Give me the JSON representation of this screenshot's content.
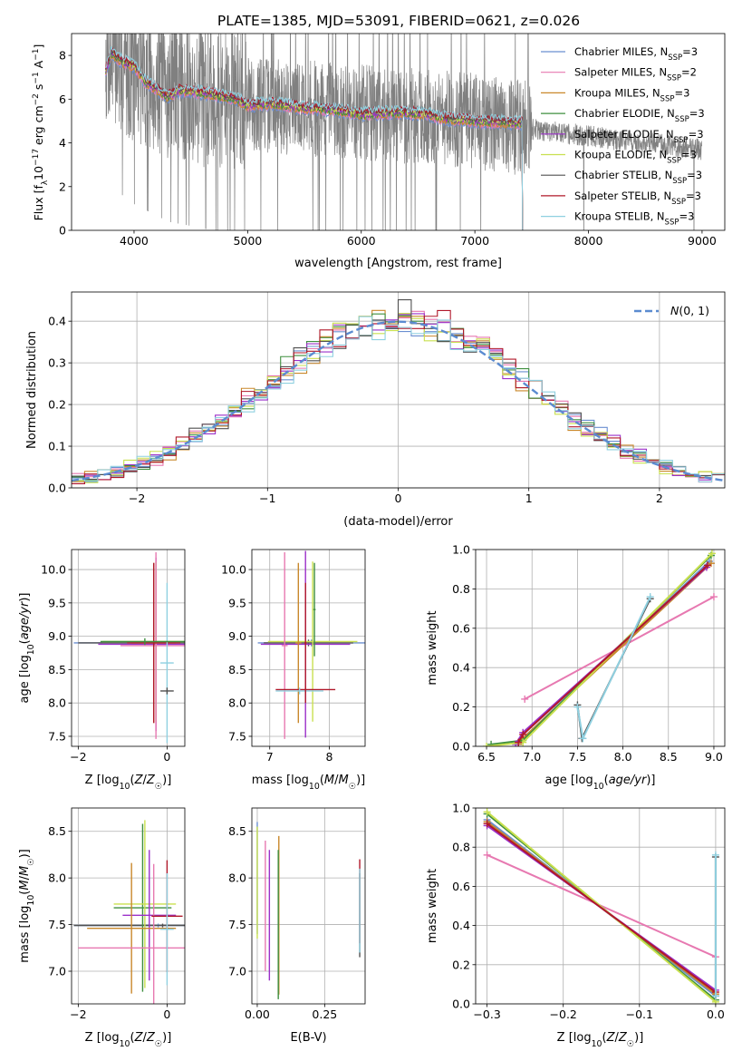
{
  "figure_title": "PLATE=1385, MJD=53091, FIBERID=0621, z=0.026",
  "series_names": [
    "Chabrier MILES, N_SSP=3",
    "Salpeter MILES, N_SSP=2",
    "Kroupa MILES, N_SSP=3",
    "Chabrier ELODIE, N_SSP=3",
    "Salpeter ELODIE, N_SSP=3",
    "Kroupa ELODIE, N_SSP=3",
    "Chabrier STELIB, N_SSP=3",
    "Salpeter STELIB, N_SSP=3",
    "Kroupa STELIB, N_SSP=3"
  ],
  "series_colors": [
    "#6b8fd1",
    "#e779b1",
    "#c9882b",
    "#3f8f3f",
    "#9b30c9",
    "#c9e04f",
    "#505050",
    "#b0182a",
    "#8fd0e0"
  ],
  "chart_data": [
    {
      "id": "spectrum",
      "type": "line",
      "title": "PLATE=1385, MJD=53091, FIBERID=0621, z=0.026",
      "xlabel": "wavelength [Angstrom, rest frame]",
      "ylabel": "Flux [f_λ 10^-17 erg cm^-2 s^-1 A^-1]",
      "xlim": [
        3450,
        9200
      ],
      "ylim": [
        0,
        9
      ],
      "xticks": [
        4000,
        5000,
        6000,
        7000,
        8000,
        9000
      ],
      "yticks": [
        0,
        2,
        4,
        6,
        8
      ],
      "data_color": "#808080",
      "data_x_range": [
        3750,
        9000
      ],
      "data_trend": {
        "x": [
          3750,
          3900,
          4000,
          4300,
          4600,
          5000,
          5500,
          6000,
          6500,
          7000,
          7400,
          8000,
          9000
        ],
        "y": [
          8.0,
          7.6,
          7.2,
          6.4,
          6.1,
          5.8,
          5.6,
          5.4,
          5.2,
          5.0,
          4.7,
          4.3,
          3.7
        ]
      },
      "model_trend": {
        "x": [
          3750,
          3800,
          3900,
          4000,
          4100,
          4300,
          4400,
          4600,
          4900,
          5000,
          5200,
          5500,
          5800,
          6000,
          6300,
          6600,
          6750,
          7000,
          7400
        ],
        "y": [
          7.3,
          8.1,
          7.7,
          7.5,
          6.8,
          6.1,
          6.4,
          6.3,
          6.0,
          5.7,
          5.8,
          5.6,
          5.5,
          5.3,
          5.4,
          5.3,
          5.1,
          5.0,
          4.9
        ]
      },
      "model_end_x": 7420,
      "legend_position": "upper right",
      "grid": false
    },
    {
      "id": "residuals",
      "type": "line",
      "xlabel": "(data-model)/error",
      "ylabel": "Normed distribution",
      "xlim": [
        -2.5,
        2.5
      ],
      "ylim": [
        0,
        0.47
      ],
      "xticks": [
        -2,
        -1,
        0,
        1,
        2
      ],
      "yticks": [
        0.0,
        0.1,
        0.2,
        0.3,
        0.4
      ],
      "grid": true,
      "bin_width": 0.1,
      "reference_curve": {
        "label": "N(0,1)",
        "type": "normal",
        "mean": 0,
        "sigma": 1,
        "style": "dashed",
        "color": "#5b8bd0"
      },
      "histogram_type": "step",
      "legend_position": "upper right"
    },
    {
      "id": "age_vs_Z",
      "type": "scatter",
      "xlabel": "Z [log10(Z/Z☉)]",
      "ylabel": "age [log10(age/yr)]",
      "xlim": [
        -2.15,
        0.4
      ],
      "ylim": [
        7.35,
        10.3
      ],
      "xticks": [
        -2,
        0
      ],
      "yticks": [
        7.5,
        8.0,
        8.5,
        9.0,
        9.5,
        10.0
      ],
      "grid": true,
      "error_bars": [
        {
          "s": 0,
          "x": -0.3,
          "y": 8.9,
          "xerr": 1.8,
          "yerr": 0.05
        },
        {
          "s": 6,
          "x": 0.0,
          "y": 8.9,
          "xerr": 2.0,
          "yerr": 0.02
        },
        {
          "s": 4,
          "x": -0.25,
          "y": 8.88,
          "xerr": 1.3,
          "yerr": 1.3
        },
        {
          "s": 5,
          "x": -0.25,
          "y": 8.92,
          "xerr": 1.2,
          "yerr": 1.2
        },
        {
          "s": 1,
          "x": -0.25,
          "y": 8.86,
          "xerr": 0.8,
          "yerr": 1.4
        },
        {
          "s": 2,
          "x": -0.3,
          "y": 8.9,
          "xerr": 0.5,
          "yerr": 1.2
        },
        {
          "s": 7,
          "x": -0.3,
          "y": 8.9,
          "xerr": 0.6,
          "yerr": 1.2
        },
        {
          "s": 8,
          "x": 0.0,
          "y": 8.6,
          "xerr": 0.15,
          "yerr": 1.2
        },
        {
          "s": 6,
          "x": 0.0,
          "y": 8.18,
          "xerr": 0.15,
          "yerr": 0.05
        },
        {
          "s": 3,
          "x": -0.5,
          "y": 8.92,
          "xerr": 1.0,
          "yerr": 0.05
        }
      ]
    },
    {
      "id": "age_vs_mass",
      "type": "scatter",
      "xlabel": "mass [log10(M/M☉)]",
      "ylabel": "",
      "xlim": [
        6.7,
        8.6
      ],
      "ylim": [
        7.35,
        10.3
      ],
      "xticks": [
        7,
        8
      ],
      "yticks": [
        7.5,
        8.0,
        8.5,
        9.0,
        9.5,
        10.0
      ],
      "grid": true,
      "error_bars": [
        {
          "s": 0,
          "x": 7.7,
          "y": 8.9,
          "xerr": 0.9,
          "yerr": 0.05
        },
        {
          "s": 6,
          "x": 7.65,
          "y": 8.9,
          "xerr": 0.75,
          "yerr": 0.05
        },
        {
          "s": 4,
          "x": 7.6,
          "y": 8.88,
          "xerr": 0.75,
          "yerr": 1.4
        },
        {
          "s": 5,
          "x": 7.72,
          "y": 8.92,
          "xerr": 0.75,
          "yerr": 1.2
        },
        {
          "s": 1,
          "x": 7.25,
          "y": 8.86,
          "xerr": 0.05,
          "yerr": 1.4
        },
        {
          "s": 2,
          "x": 7.48,
          "y": 8.9,
          "xerr": 0.05,
          "yerr": 1.2
        },
        {
          "s": 7,
          "x": 7.6,
          "y": 8.2,
          "xerr": 0.5,
          "yerr": 0.05
        },
        {
          "s": 8,
          "x": 7.5,
          "y": 8.18,
          "xerr": 0.4,
          "yerr": 0.05
        },
        {
          "s": 3,
          "x": 7.75,
          "y": 9.4,
          "xerr": 0.02,
          "yerr": 0.7
        },
        {
          "s": 7,
          "x": 7.6,
          "y": 8.9,
          "xerr": 0.02,
          "yerr": 0.9
        }
      ]
    },
    {
      "id": "massweight_vs_age",
      "type": "line",
      "xlabel": "age [log10(age/yr)]",
      "ylabel": "mass weight",
      "xlim": [
        6.38,
        9.12
      ],
      "ylim": [
        0,
        1.0
      ],
      "xticks": [
        6.5,
        7.0,
        7.5,
        8.0,
        8.5,
        9.0
      ],
      "yticks": [
        0.0,
        0.2,
        0.4,
        0.6,
        0.8,
        1.0
      ],
      "grid": true,
      "lines": [
        {
          "s": 0,
          "x": [
            6.85,
            6.9,
            8.95
          ],
          "y": [
            0.01,
            0.04,
            0.94
          ]
        },
        {
          "s": 1,
          "x": [
            6.92,
            9.0
          ],
          "y": [
            0.24,
            0.76
          ]
        },
        {
          "s": 2,
          "x": [
            6.85,
            6.9,
            8.97
          ],
          "y": [
            0.01,
            0.04,
            0.93
          ]
        },
        {
          "s": 3,
          "x": [
            6.55,
            6.9,
            8.97
          ],
          "y": [
            0.01,
            0.03,
            0.97
          ]
        },
        {
          "s": 4,
          "x": [
            6.82,
            6.9,
            8.92
          ],
          "y": [
            0.01,
            0.07,
            0.91
          ]
        },
        {
          "s": 5,
          "x": [
            6.5,
            6.9,
            8.98
          ],
          "y": [
            0.0,
            0.02,
            0.98
          ]
        },
        {
          "s": 6,
          "x": [
            7.5,
            7.55,
            8.3
          ],
          "y": [
            0.21,
            0.04,
            0.75
          ]
        },
        {
          "s": 7,
          "x": [
            6.85,
            6.9,
            8.93
          ],
          "y": [
            0.02,
            0.06,
            0.92
          ]
        },
        {
          "s": 8,
          "x": [
            7.5,
            7.56,
            8.3
          ],
          "y": [
            0.2,
            0.04,
            0.76
          ]
        }
      ]
    },
    {
      "id": "mass_vs_Z",
      "type": "scatter",
      "xlabel": "Z [log10(Z/Z☉)]",
      "ylabel": "mass [log10(M/M☉)]",
      "xlim": [
        -2.15,
        0.4
      ],
      "ylim": [
        6.65,
        8.75
      ],
      "xticks": [
        -2,
        0
      ],
      "yticks": [
        7.0,
        7.5,
        8.0,
        8.5
      ],
      "grid": true,
      "error_bars": [
        {
          "s": 0,
          "x": -0.2,
          "y": 7.49,
          "xerr": 1.9,
          "yerr": 0.02
        },
        {
          "s": 6,
          "x": -0.1,
          "y": 7.49,
          "xerr": 2.0,
          "yerr": 0.02
        },
        {
          "s": 3,
          "x": -0.55,
          "y": 7.68,
          "xerr": 0.65,
          "yerr": 0.9
        },
        {
          "s": 5,
          "x": -0.5,
          "y": 7.72,
          "xerr": 0.7,
          "yerr": 0.9
        },
        {
          "s": 4,
          "x": -0.4,
          "y": 7.6,
          "xerr": 0.6,
          "yerr": 0.7
        },
        {
          "s": 2,
          "x": -0.8,
          "y": 7.46,
          "xerr": 1.0,
          "yerr": 0.7
        },
        {
          "s": 1,
          "x": -0.3,
          "y": 7.25,
          "xerr": 1.7,
          "yerr": 0.9
        },
        {
          "s": 7,
          "x": 0.0,
          "y": 7.59,
          "xerr": 0.35,
          "yerr": 0.6
        },
        {
          "s": 8,
          "x": 0.0,
          "y": 7.45,
          "xerr": 0.15,
          "yerr": 0.6
        }
      ]
    },
    {
      "id": "mass_vs_EBV",
      "type": "scatter",
      "xlabel": "E(B-V)",
      "ylabel": "",
      "xlim": [
        -0.02,
        0.4
      ],
      "ylim": [
        6.65,
        8.75
      ],
      "xticks": [
        0.0,
        0.25
      ],
      "yticks": [
        7.0,
        7.5,
        8.0,
        8.5
      ],
      "grid": true,
      "error_bars": [
        {
          "s": 0,
          "x": 0.0,
          "y": 8.0,
          "xerr": 0.0,
          "yerr": 0.6
        },
        {
          "s": 5,
          "x": 0.0,
          "y": 7.95,
          "xerr": 0.0,
          "yerr": 0.6
        },
        {
          "s": 1,
          "x": 0.03,
          "y": 7.7,
          "xerr": 0.0,
          "yerr": 0.7
        },
        {
          "s": 4,
          "x": 0.045,
          "y": 7.6,
          "xerr": 0.0,
          "yerr": 0.7
        },
        {
          "s": 2,
          "x": 0.08,
          "y": 7.6,
          "xerr": 0.0,
          "yerr": 0.85
        },
        {
          "s": 3,
          "x": 0.078,
          "y": 7.5,
          "xerr": 0.0,
          "yerr": 0.8
        },
        {
          "s": 6,
          "x": 0.38,
          "y": 7.6,
          "xerr": 0.0,
          "yerr": 0.45
        },
        {
          "s": 7,
          "x": 0.38,
          "y": 7.75,
          "xerr": 0.0,
          "yerr": 0.45
        },
        {
          "s": 8,
          "x": 0.38,
          "y": 7.65,
          "xerr": 0.0,
          "yerr": 0.45
        }
      ]
    },
    {
      "id": "massweight_vs_Z",
      "type": "line",
      "xlabel": "Z [log10(Z/Z☉)]",
      "ylabel": "mass weight",
      "xlim": [
        -0.315,
        0.012
      ],
      "ylim": [
        0,
        1.0
      ],
      "xticks": [
        -0.3,
        -0.2,
        -0.1,
        0.0
      ],
      "yticks": [
        0.0,
        0.2,
        0.4,
        0.6,
        0.8,
        1.0
      ],
      "grid": true,
      "lines": [
        {
          "s": 0,
          "x": [
            -0.3,
            0.0
          ],
          "y": [
            0.94,
            0.04
          ]
        },
        {
          "s": 1,
          "x": [
            -0.3,
            0.0
          ],
          "y": [
            0.76,
            0.24
          ]
        },
        {
          "s": 2,
          "x": [
            -0.3,
            0.0
          ],
          "y": [
            0.93,
            0.05
          ]
        },
        {
          "s": 3,
          "x": [
            -0.3,
            0.0
          ],
          "y": [
            0.97,
            0.02
          ]
        },
        {
          "s": 4,
          "x": [
            -0.3,
            0.0
          ],
          "y": [
            0.91,
            0.07
          ]
        },
        {
          "s": 5,
          "x": [
            -0.3,
            0.0
          ],
          "y": [
            0.98,
            0.01
          ]
        },
        {
          "s": 6,
          "x": [
            0.0,
            0.0
          ],
          "y": [
            0.04,
            0.75
          ]
        },
        {
          "s": 7,
          "x": [
            -0.3,
            0.0
          ],
          "y": [
            0.92,
            0.06
          ]
        },
        {
          "s": 8,
          "x": [
            0.0,
            0.0
          ],
          "y": [
            0.04,
            0.76
          ]
        }
      ]
    }
  ]
}
